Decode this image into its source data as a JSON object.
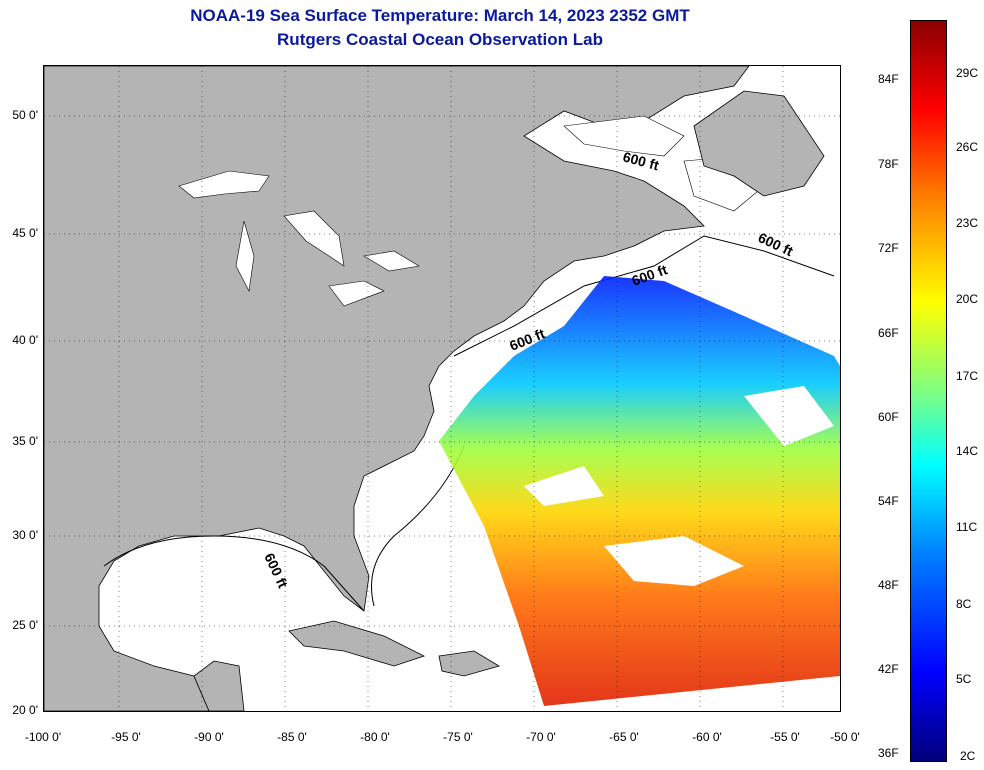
{
  "header": {
    "title": "NOAA-19 Sea Surface Temperature:  March 14, 2023 2352 GMT",
    "subtitle": "Rutgers Coastal Ocean Observation Lab"
  },
  "map": {
    "lat_labels": [
      "50 0'",
      "45 0'",
      "40 0'",
      "35 0'",
      "30 0'",
      "25 0'",
      "20 0'"
    ],
    "lon_labels": [
      "-100 0'",
      "-95 0'",
      "-90 0'",
      "-85 0'",
      "-80 0'",
      "-75 0'",
      "-70 0'",
      "-65 0'",
      "-60 0'",
      "-55 0'",
      "-50 0'"
    ],
    "contour_label": "600 ft",
    "land_color": "#b4b4b4",
    "ocean_color": "#ffffff"
  },
  "colorbar": {
    "fahrenheit": [
      "84F",
      "78F",
      "72F",
      "66F",
      "60F",
      "54F",
      "48F",
      "42F",
      "36F"
    ],
    "celsius": [
      "29C",
      "26C",
      "23C",
      "20C",
      "17C",
      "14C",
      "11C",
      "8C",
      "5C",
      "2C"
    ]
  }
}
